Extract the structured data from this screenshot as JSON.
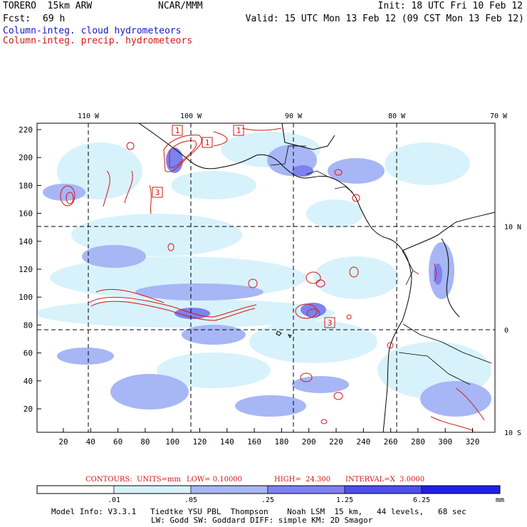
{
  "header": {
    "model": "TORERO  15km ARW",
    "org": "NCAR/MMM",
    "init": "Init: 18 UTC Fri 10 Feb 12",
    "fcst_label": "Fcst:",
    "fcst_hours": "69 h",
    "valid": "Valid: 15 UTC Mon 13 Feb 12 (09 CST Mon 13 Feb 12)",
    "legend_cloud": "Column-integ. cloud hydrometeors",
    "legend_precip": "Column-integ. precip. hydrometeors"
  },
  "map": {
    "top_longitudes": [
      "110 W",
      "100 W",
      "90 W",
      "80 W",
      "70 W"
    ],
    "right_latitudes": [
      "10 N",
      "0",
      "10 S"
    ],
    "left_ticks": [
      "220",
      "200",
      "180",
      "160",
      "140",
      "120",
      "100",
      "80",
      "60",
      "40",
      "20"
    ],
    "bottom_ticks": [
      "20",
      "40",
      "60",
      "80",
      "100",
      "120",
      "140",
      "160",
      "180",
      "200",
      "220",
      "240",
      "260",
      "280",
      "300",
      "320"
    ],
    "box_labels": [
      "1",
      "1",
      "1",
      "3",
      "3"
    ]
  },
  "contour_info": {
    "label": "CONTOURS:",
    "units": "UNITS=mm",
    "low": "LOW= 0.10000",
    "high": "HIGH=  24.300",
    "interval": "INTERVAL=X  3.0000"
  },
  "colorbar": {
    "labels": [
      ".01",
      ".05",
      ".25",
      "1.25",
      "6.25"
    ],
    "unit": "mm",
    "colors": [
      "#ffffff",
      "#d8f2fb",
      "#a7b6f5",
      "#7c82ee",
      "#4d4fe9",
      "#2020e8"
    ]
  },
  "footer": {
    "line1": "Model Info: V3.3.1   Tiedtke YSU PBL  Thompson    Noah LSM  15 km,   44 levels,   68 sec",
    "line2": "LW: Godd SW: Goddard DIFF: simple KM: 2D Smagor"
  }
}
